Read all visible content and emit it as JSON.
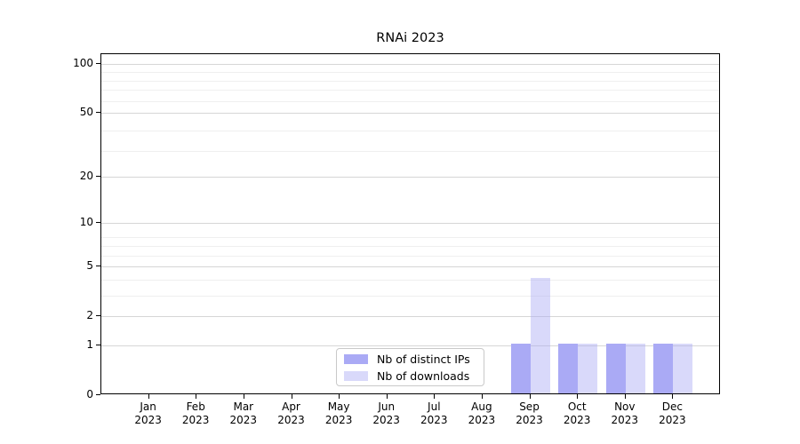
{
  "chart_data": {
    "type": "bar",
    "title": "RNAi 2023",
    "categories": [
      "Jan 2023",
      "Feb 2023",
      "Mar 2023",
      "Apr 2023",
      "May 2023",
      "Jun 2023",
      "Jul 2023",
      "Aug 2023",
      "Sep 2023",
      "Oct 2023",
      "Nov 2023",
      "Dec 2023"
    ],
    "series": [
      {
        "name": "Nb of distinct IPs",
        "color": "#aaaaf5",
        "alpha": 1,
        "values": [
          0,
          0,
          0,
          0,
          0,
          0,
          0,
          0,
          1,
          1,
          1,
          1
        ]
      },
      {
        "name": "Nb of downloads",
        "color": "#aaaaf5",
        "alpha": 0.45,
        "values": [
          0,
          0,
          0,
          0,
          0,
          0,
          0,
          0,
          4,
          1,
          1,
          1
        ]
      }
    ],
    "xlabel": "",
    "ylabel": "",
    "yscale": "log1p",
    "ylim": [
      0,
      101
    ],
    "yticks": [
      0,
      1,
      2,
      5,
      10,
      20,
      50,
      100
    ],
    "minor_gridline_values": [
      3,
      4,
      6,
      7,
      8,
      29,
      39,
      59,
      69,
      79,
      89
    ],
    "grid": true,
    "legend_position": "lower-center-inside",
    "colors": {
      "axis": "#000000",
      "major_grid": "#d6d6d6",
      "minor_grid": "#efefef",
      "text": "#000000"
    }
  }
}
